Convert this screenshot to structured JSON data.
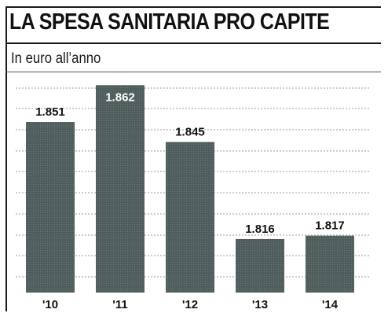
{
  "header": {
    "title": "LA SPESA SANITARIA PRO CAPITE",
    "subtitle": "In euro all’anno"
  },
  "colors": {
    "bar": "#4f5d5d",
    "text": "#111111",
    "grid": "#9a9a9a"
  },
  "chart_data": {
    "type": "bar",
    "title": "LA SPESA SANITARIA PRO CAPITE",
    "subtitle": "In euro all’anno",
    "categories": [
      "'10",
      "'11",
      "'12",
      "'13",
      "'14"
    ],
    "values": [
      1851,
      1862,
      1845,
      1816,
      1817
    ],
    "value_labels": [
      "1.851",
      "1.862",
      "1.845",
      "1.816",
      "1.817"
    ],
    "ylim": [
      1800,
      1863
    ],
    "grid": true,
    "legend": "none"
  }
}
